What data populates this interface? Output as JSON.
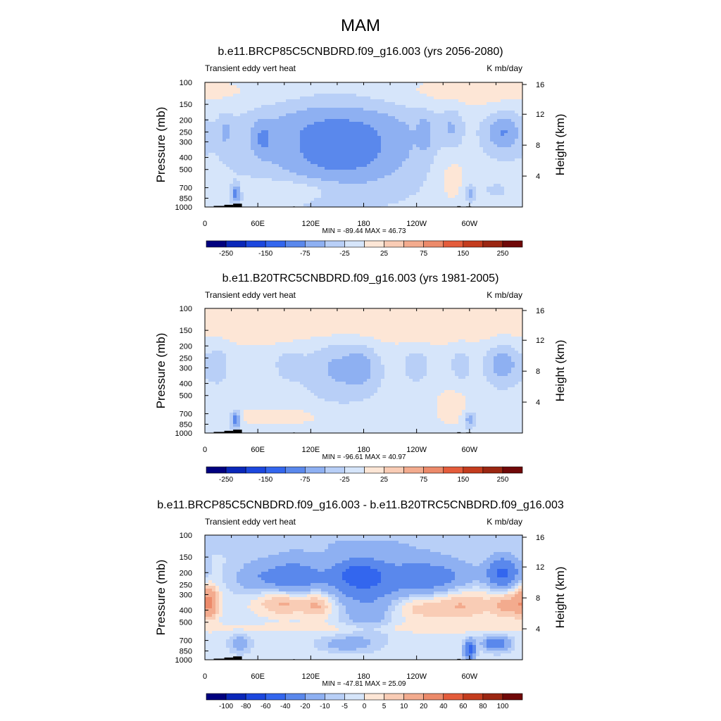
{
  "figure_title": "MAM",
  "colors": {
    "level_fills": [
      "#00007f",
      "#0a27b9",
      "#1c47de",
      "#3366ee",
      "#5a88ec",
      "#8eb0f2",
      "#b8cff7",
      "#d6e5fa",
      "#fde6d6",
      "#f9ccb5",
      "#f3ab8e",
      "#ec8a6a",
      "#e45c3b",
      "#c43c1e",
      "#9b2612",
      "#700808"
    ],
    "land": "#000000"
  },
  "chart_data": [
    {
      "type": "heatmap",
      "title": "b.e11.BRCP85C5CNBDRD.f09_g16.003 (yrs 2056-2080)",
      "left_string": "Transient eddy vert heat",
      "right_string": "K mb/day",
      "ylabel": "Pressure (mb)",
      "ylabel_right": "Height (km)",
      "x_ticks": [
        "0",
        "60E",
        "120E",
        "180",
        "120W",
        "60W"
      ],
      "x_values": [
        0,
        60,
        120,
        180,
        240,
        300
      ],
      "xlim": [
        0,
        360
      ],
      "y_ticks": [
        "100",
        "150",
        "200",
        "250",
        "300",
        "400",
        "500",
        "700",
        "850",
        "1000"
      ],
      "y_values": [
        100,
        150,
        200,
        250,
        300,
        400,
        500,
        700,
        850,
        1000
      ],
      "y_scale": "log",
      "ylim": [
        1000,
        100
      ],
      "y_right_ticks": [
        "4",
        "8",
        "12",
        "16"
      ],
      "y_right_values": [
        4,
        8,
        12,
        16
      ],
      "stats": "MIN = -89.44  MAX =  46.73",
      "colorbar": {
        "levels": [
          -300,
          -250,
          -200,
          -150,
          -100,
          -75,
          -50,
          -25,
          0,
          25,
          50,
          75,
          100,
          150,
          200,
          250,
          300
        ],
        "labels": [
          "-250",
          "-150",
          "-75",
          "-25",
          "25",
          "75",
          "150",
          "250"
        ],
        "label_bounds": [
          1,
          3,
          5,
          7,
          9,
          11,
          13,
          15
        ]
      },
      "field_components": [
        {
          "lon": 150,
          "p": 250,
          "dlon": 75,
          "dlogp": 0.35,
          "amp": -70
        },
        {
          "lon": 160,
          "p": 400,
          "dlon": 40,
          "dlogp": 0.15,
          "amp": -20
        },
        {
          "lon": 338,
          "p": 250,
          "dlon": 14,
          "dlogp": 0.12,
          "amp": -60
        },
        {
          "lon": 65,
          "p": 280,
          "dlon": 8,
          "dlogp": 0.1,
          "amp": -35
        },
        {
          "lon": 23,
          "p": 250,
          "dlon": 5,
          "dlogp": 0.1,
          "amp": -30
        },
        {
          "lon": 250,
          "p": 250,
          "dlon": 6,
          "dlogp": 0.1,
          "amp": -30
        },
        {
          "lon": 280,
          "p": 230,
          "dlon": 8,
          "dlogp": 0.12,
          "amp": -30
        },
        {
          "lon": 35,
          "p": 780,
          "dlon": 4,
          "dlogp": 0.05,
          "amp": -80
        },
        {
          "lon": 300,
          "p": 780,
          "dlon": 5,
          "dlogp": 0.05,
          "amp": -50
        },
        {
          "lon": 330,
          "p": 730,
          "dlon": 8,
          "dlogp": 0.03,
          "amp": -30
        },
        {
          "lon": 90,
          "p": 720,
          "dlon": 40,
          "dlogp": 0.06,
          "amp": 30
        },
        {
          "lon": 280,
          "p": 560,
          "dlon": 15,
          "dlogp": 0.18,
          "amp": 28
        },
        {
          "lon": 180,
          "p": 120,
          "dlon": 200,
          "dlogp": 0.12,
          "amp": 35
        }
      ],
      "field_background": -12,
      "land_segments": [
        [
          10,
          12,
          1000,
          980
        ],
        [
          22,
          10,
          1000,
          960
        ],
        [
          32,
          10,
          1000,
          940
        ],
        [
          100,
          2,
          1000,
          990
        ],
        [
          286,
          4,
          1000,
          985
        ],
        [
          296,
          6,
          1000,
          990
        ]
      ]
    },
    {
      "type": "heatmap",
      "title": "b.e11.B20TRC5CNBDRD.f09_g16.003 (yrs 1981-2005)",
      "left_string": "Transient eddy vert heat",
      "right_string": "K mb/day",
      "ylabel": "Pressure (mb)",
      "ylabel_right": "Height (km)",
      "x_ticks": [
        "0",
        "60E",
        "120E",
        "180",
        "120W",
        "60W"
      ],
      "x_values": [
        0,
        60,
        120,
        180,
        240,
        300
      ],
      "xlim": [
        0,
        360
      ],
      "y_ticks": [
        "100",
        "150",
        "200",
        "250",
        "300",
        "400",
        "500",
        "700",
        "850",
        "1000"
      ],
      "y_values": [
        100,
        150,
        200,
        250,
        300,
        400,
        500,
        700,
        850,
        1000
      ],
      "y_scale": "log",
      "ylim": [
        1000,
        100
      ],
      "y_right_ticks": [
        "4",
        "8",
        "12",
        "16"
      ],
      "y_right_values": [
        4,
        8,
        12,
        16
      ],
      "stats": "MIN = -96.61  MAX =  40.97",
      "colorbar": {
        "levels": [
          -300,
          -250,
          -200,
          -150,
          -100,
          -75,
          -50,
          -25,
          0,
          25,
          50,
          75,
          100,
          150,
          200,
          250,
          300
        ],
        "labels": [
          "-250",
          "-150",
          "-75",
          "-25",
          "25",
          "75",
          "150",
          "250"
        ],
        "label_bounds": [
          1,
          3,
          5,
          7,
          9,
          11,
          13,
          15
        ]
      },
      "field_components": [
        {
          "lon": 155,
          "p": 300,
          "dlon": 30,
          "dlogp": 0.18,
          "amp": -45
        },
        {
          "lon": 178,
          "p": 290,
          "dlon": 10,
          "dlogp": 0.12,
          "amp": -25
        },
        {
          "lon": 338,
          "p": 280,
          "dlon": 14,
          "dlogp": 0.12,
          "amp": -55
        },
        {
          "lon": 15,
          "p": 280,
          "dlon": 8,
          "dlogp": 0.12,
          "amp": -30
        },
        {
          "lon": 95,
          "p": 280,
          "dlon": 10,
          "dlogp": 0.08,
          "amp": -30
        },
        {
          "lon": 240,
          "p": 280,
          "dlon": 10,
          "dlogp": 0.1,
          "amp": -30
        },
        {
          "lon": 290,
          "p": 280,
          "dlon": 8,
          "dlogp": 0.1,
          "amp": -30
        },
        {
          "lon": 35,
          "p": 780,
          "dlon": 4,
          "dlogp": 0.05,
          "amp": -90
        },
        {
          "lon": 300,
          "p": 780,
          "dlon": 5,
          "dlogp": 0.05,
          "amp": -55
        },
        {
          "lon": 80,
          "p": 740,
          "dlon": 40,
          "dlogp": 0.05,
          "amp": 28
        },
        {
          "lon": 280,
          "p": 620,
          "dlon": 15,
          "dlogp": 0.12,
          "amp": 25
        },
        {
          "lon": 180,
          "p": 125,
          "dlon": 200,
          "dlogp": 0.14,
          "amp": 38
        }
      ],
      "field_background": -12,
      "land_segments": [
        [
          10,
          12,
          1000,
          980
        ],
        [
          22,
          10,
          1000,
          960
        ],
        [
          32,
          10,
          1000,
          940
        ],
        [
          100,
          2,
          1000,
          990
        ],
        [
          286,
          4,
          1000,
          985
        ],
        [
          296,
          6,
          1000,
          990
        ]
      ]
    },
    {
      "type": "heatmap",
      "title": "b.e11.BRCP85C5CNBDRD.f09_g16.003 - b.e11.B20TRC5CNBDRD.f09_g16.003",
      "left_string": "Transient eddy vert heat",
      "right_string": "K mb/day",
      "ylabel": "Pressure (mb)",
      "ylabel_right": "Height (km)",
      "x_ticks": [
        "0",
        "60E",
        "120E",
        "180",
        "120W",
        "60W"
      ],
      "x_values": [
        0,
        60,
        120,
        180,
        240,
        300
      ],
      "xlim": [
        0,
        360
      ],
      "y_ticks": [
        "100",
        "150",
        "200",
        "250",
        "300",
        "400",
        "500",
        "700",
        "850",
        "1000"
      ],
      "y_values": [
        100,
        150,
        200,
        250,
        300,
        400,
        500,
        700,
        850,
        1000
      ],
      "y_scale": "log",
      "ylim": [
        1000,
        100
      ],
      "y_right_ticks": [
        "4",
        "8",
        "12",
        "16"
      ],
      "y_right_values": [
        4,
        8,
        12,
        16
      ],
      "stats": "MIN = -47.81  MAX =  25.09",
      "colorbar": {
        "levels": [
          -120,
          -100,
          -80,
          -60,
          -40,
          -20,
          -10,
          -5,
          0,
          5,
          10,
          20,
          40,
          60,
          80,
          100,
          120
        ],
        "labels": [
          "-100",
          "-80",
          "-60",
          "-40",
          "-20",
          "-10",
          "-5",
          "0",
          "5",
          "10",
          "20",
          "40",
          "60",
          "80",
          "100"
        ],
        "label_bounds": [
          1,
          2,
          3,
          4,
          5,
          6,
          7,
          8,
          9,
          10,
          11,
          12,
          13,
          14,
          15
        ]
      },
      "field_components": [
        {
          "lon": 180,
          "p": 220,
          "dlon": 70,
          "dlogp": 0.12,
          "amp": -22
        },
        {
          "lon": 185,
          "p": 210,
          "dlon": 12,
          "dlogp": 0.08,
          "amp": -25
        },
        {
          "lon": 165,
          "p": 210,
          "dlon": 10,
          "dlogp": 0.08,
          "amp": -20
        },
        {
          "lon": 338,
          "p": 200,
          "dlon": 12,
          "dlogp": 0.08,
          "amp": -40
        },
        {
          "lon": 100,
          "p": 220,
          "dlon": 15,
          "dlogp": 0.1,
          "amp": -15
        },
        {
          "lon": 185,
          "p": 400,
          "dlon": 20,
          "dlogp": 0.15,
          "amp": -12
        },
        {
          "lon": 260,
          "p": 220,
          "dlon": 30,
          "dlogp": 0.1,
          "amp": -15
        },
        {
          "lon": 65,
          "p": 220,
          "dlon": 20,
          "dlogp": 0.1,
          "amp": -12
        },
        {
          "lon": 90,
          "p": 340,
          "dlon": 25,
          "dlogp": 0.08,
          "amp": 18
        },
        {
          "lon": 5,
          "p": 340,
          "dlon": 8,
          "dlogp": 0.1,
          "amp": 20
        },
        {
          "lon": 290,
          "p": 350,
          "dlon": 25,
          "dlogp": 0.1,
          "amp": 15
        },
        {
          "lon": 345,
          "p": 360,
          "dlon": 15,
          "dlogp": 0.08,
          "amp": 15
        },
        {
          "lon": 130,
          "p": 360,
          "dlon": 12,
          "dlogp": 0.08,
          "amp": 12
        },
        {
          "lon": 240,
          "p": 380,
          "dlon": 20,
          "dlogp": 0.08,
          "amp": 10
        },
        {
          "lon": 300,
          "p": 830,
          "dlon": 4,
          "dlogp": 0.05,
          "amp": -45
        },
        {
          "lon": 330,
          "p": 740,
          "dlon": 10,
          "dlogp": 0.04,
          "amp": -30
        },
        {
          "lon": 40,
          "p": 740,
          "dlon": 8,
          "dlogp": 0.05,
          "amp": -12
        },
        {
          "lon": 160,
          "p": 750,
          "dlon": 20,
          "dlogp": 0.04,
          "amp": -12
        },
        {
          "lon": 180,
          "p": 560,
          "dlon": 200,
          "dlogp": 0.03,
          "amp": 5
        },
        {
          "lon": 180,
          "p": 110,
          "dlon": 200,
          "dlogp": 0.08,
          "amp": -6
        }
      ],
      "field_background": -3,
      "land_segments": [
        [
          10,
          12,
          1000,
          980
        ],
        [
          22,
          10,
          1000,
          960
        ],
        [
          32,
          10,
          1000,
          940
        ],
        [
          100,
          2,
          1000,
          990
        ],
        [
          286,
          4,
          1000,
          985
        ],
        [
          296,
          6,
          1000,
          990
        ]
      ]
    }
  ]
}
